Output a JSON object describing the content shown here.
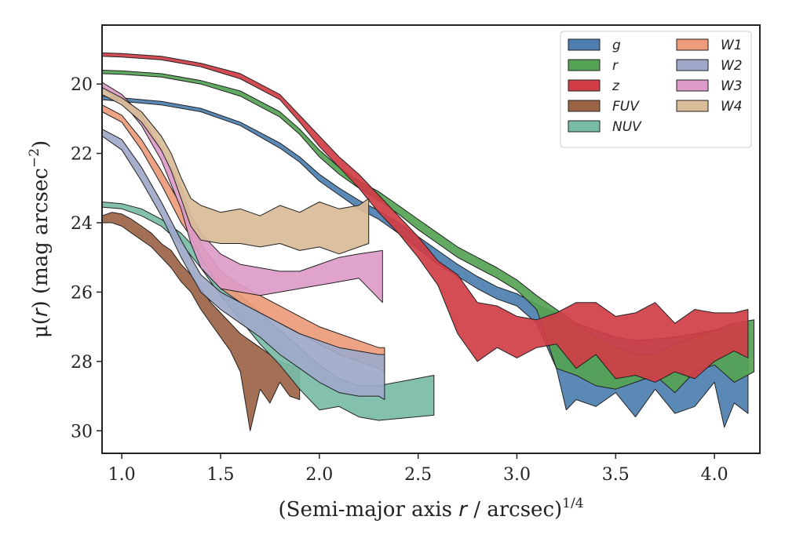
{
  "chart_data": {
    "type": "area",
    "xlabel": "(Semi-major axis r / arcsec)^{1/4}",
    "xlabel_parts": {
      "pre": "(Semi-major axis ",
      "var": "r",
      "mid": " / arcsec)",
      "sup": "1/4"
    },
    "ylabel": "μ(r) (mag arcsec^{-2})",
    "ylabel_parts": {
      "mu": "μ(",
      "var": "r",
      "post": ") (mag arcsec",
      "sup": "−2",
      "close": ")"
    },
    "xlim": [
      0.9,
      4.23
    ],
    "ylim": [
      30.65,
      18.3
    ],
    "y_inverted": true,
    "xticks": [
      1.0,
      1.5,
      2.0,
      2.5,
      3.0,
      3.5,
      4.0
    ],
    "xtick_labels": [
      "1.0",
      "1.5",
      "2.0",
      "2.5",
      "3.0",
      "3.5",
      "4.0"
    ],
    "yticks": [
      20,
      22,
      24,
      26,
      28,
      30
    ],
    "ytick_labels": [
      "20",
      "22",
      "24",
      "26",
      "28",
      "30"
    ],
    "grid": false,
    "legend_position": "top-right",
    "legend_columns": 2,
    "series": [
      {
        "name": "g",
        "color": "#4c7fb0",
        "x": [
          0.9,
          1.0,
          1.2,
          1.4,
          1.6,
          1.8,
          1.9,
          2.0,
          2.1,
          2.2,
          2.3,
          2.4,
          2.5,
          2.6,
          2.7,
          2.8,
          2.9,
          3.0,
          3.1,
          3.2,
          3.25,
          3.3,
          3.4,
          3.5,
          3.6,
          3.7,
          3.8,
          3.9,
          4.0,
          4.05,
          4.1,
          4.17
        ],
        "y_top": [
          20.35,
          20.4,
          20.5,
          20.7,
          21.1,
          21.7,
          22.1,
          22.6,
          23.0,
          23.35,
          23.65,
          24.0,
          24.4,
          24.8,
          25.2,
          25.55,
          25.85,
          26.05,
          26.35,
          26.6,
          26.8,
          26.9,
          27.1,
          27.3,
          27.4,
          27.35,
          27.3,
          27.2,
          27.1,
          27.0,
          27.0,
          27.2
        ],
        "y_bottom": [
          20.45,
          20.5,
          20.6,
          20.8,
          21.2,
          21.85,
          22.25,
          22.8,
          23.2,
          23.6,
          23.9,
          24.3,
          24.75,
          25.2,
          25.55,
          25.9,
          26.2,
          26.4,
          26.9,
          28.2,
          29.4,
          29.1,
          29.3,
          28.9,
          29.6,
          28.8,
          29.5,
          29.3,
          28.6,
          29.9,
          29.2,
          29.5
        ]
      },
      {
        "name": "r",
        "color": "#55a355",
        "x": [
          0.9,
          1.0,
          1.2,
          1.4,
          1.6,
          1.8,
          1.9,
          2.0,
          2.1,
          2.2,
          2.3,
          2.4,
          2.5,
          2.6,
          2.7,
          2.8,
          2.9,
          3.0,
          3.1,
          3.2,
          3.3,
          3.4,
          3.5,
          3.6,
          3.7,
          3.8,
          3.9,
          4.0,
          4.1,
          4.2
        ],
        "y_top": [
          19.6,
          19.62,
          19.7,
          19.9,
          20.2,
          20.8,
          21.3,
          21.9,
          22.4,
          22.8,
          23.1,
          23.5,
          23.9,
          24.3,
          24.7,
          25.0,
          25.3,
          25.65,
          26.1,
          26.5,
          26.9,
          27.3,
          27.6,
          27.8,
          27.8,
          27.5,
          27.3,
          27.1,
          26.9,
          26.8
        ],
        "y_bottom": [
          19.7,
          19.72,
          19.8,
          20.0,
          20.35,
          20.95,
          21.45,
          22.1,
          22.6,
          23.0,
          23.35,
          23.75,
          24.2,
          24.6,
          25.0,
          25.3,
          25.6,
          25.95,
          26.5,
          28.2,
          28.4,
          28.7,
          28.8,
          28.6,
          28.4,
          28.9,
          28.3,
          28.1,
          28.6,
          28.3
        ]
      },
      {
        "name": "z",
        "color": "#d03d45",
        "x": [
          0.9,
          1.0,
          1.2,
          1.4,
          1.6,
          1.8,
          1.9,
          2.0,
          2.1,
          2.2,
          2.3,
          2.4,
          2.5,
          2.6,
          2.7,
          2.8,
          2.9,
          3.0,
          3.1,
          3.2,
          3.3,
          3.4,
          3.5,
          3.6,
          3.7,
          3.8,
          3.9,
          4.0,
          4.1,
          4.17
        ],
        "y_top": [
          19.1,
          19.12,
          19.2,
          19.4,
          19.7,
          20.3,
          20.9,
          21.5,
          22.1,
          22.6,
          23.2,
          23.8,
          24.4,
          25.1,
          25.5,
          26.3,
          26.4,
          26.7,
          26.8,
          26.6,
          26.3,
          26.3,
          26.7,
          26.6,
          26.3,
          26.9,
          26.5,
          26.6,
          26.6,
          26.5
        ],
        "y_bottom": [
          19.2,
          19.22,
          19.3,
          19.5,
          19.85,
          20.45,
          21.1,
          21.8,
          22.4,
          23.0,
          23.7,
          24.3,
          25.0,
          25.8,
          27.2,
          28.0,
          27.6,
          27.9,
          27.6,
          27.5,
          28.2,
          27.8,
          28.5,
          28.4,
          28.6,
          28.3,
          28.5,
          28.0,
          27.7,
          27.9
        ]
      },
      {
        "name": "FUV",
        "color": "#9c6446",
        "x": [
          0.9,
          0.95,
          1.0,
          1.05,
          1.1,
          1.15,
          1.2,
          1.25,
          1.3,
          1.35,
          1.4,
          1.45,
          1.5,
          1.55,
          1.6,
          1.65,
          1.7,
          1.75,
          1.8,
          1.85,
          1.9
        ],
        "y_top": [
          23.8,
          23.7,
          23.75,
          23.9,
          24.1,
          24.3,
          24.6,
          24.8,
          25.2,
          25.5,
          25.9,
          26.3,
          26.6,
          26.9,
          27.2,
          27.4,
          27.6,
          27.8,
          28.0,
          28.1,
          28.2
        ],
        "y_bottom": [
          24.0,
          24.0,
          24.1,
          24.3,
          24.5,
          24.7,
          25.0,
          25.3,
          25.7,
          26.0,
          26.5,
          26.9,
          27.3,
          27.7,
          28.3,
          30.0,
          28.8,
          29.2,
          28.6,
          29.0,
          29.1
        ]
      },
      {
        "name": "NUV",
        "color": "#78bca7",
        "x": [
          0.9,
          1.0,
          1.1,
          1.2,
          1.3,
          1.4,
          1.5,
          1.6,
          1.7,
          1.8,
          1.9,
          2.0,
          2.1,
          2.2,
          2.3,
          2.58
        ],
        "y_top": [
          23.4,
          23.45,
          23.6,
          23.9,
          24.3,
          24.9,
          25.5,
          26.1,
          26.6,
          27.1,
          27.6,
          28.1,
          28.5,
          28.7,
          28.7,
          28.4
        ],
        "y_bottom": [
          23.55,
          23.6,
          23.8,
          24.1,
          24.6,
          25.3,
          26.1,
          26.8,
          27.5,
          28.1,
          28.8,
          29.4,
          29.3,
          29.6,
          29.7,
          29.55
        ]
      },
      {
        "name": "W1",
        "color": "#ed9b7a",
        "x": [
          0.9,
          1.0,
          1.1,
          1.2,
          1.3,
          1.35,
          1.4,
          1.5,
          1.6,
          1.7,
          1.8,
          1.9,
          2.0,
          2.1,
          2.2,
          2.3,
          2.33
        ],
        "y_top": [
          20.6,
          20.9,
          21.6,
          22.5,
          23.5,
          24.0,
          24.6,
          25.4,
          25.8,
          26.1,
          26.4,
          26.7,
          27.0,
          27.2,
          27.4,
          27.6,
          27.6
        ],
        "y_bottom": [
          20.8,
          21.1,
          21.9,
          22.9,
          24.0,
          24.4,
          25.0,
          25.9,
          26.3,
          26.6,
          26.9,
          27.2,
          27.5,
          27.8,
          28.0,
          28.2,
          28.3
        ]
      },
      {
        "name": "W2",
        "color": "#9ea9c9",
        "x": [
          0.9,
          1.0,
          1.1,
          1.2,
          1.3,
          1.35,
          1.4,
          1.5,
          1.6,
          1.7,
          1.8,
          1.9,
          2.0,
          2.1,
          2.2,
          2.3,
          2.33
        ],
        "y_top": [
          21.3,
          21.6,
          22.4,
          23.4,
          24.5,
          25.0,
          25.5,
          26.0,
          26.3,
          26.6,
          26.9,
          27.2,
          27.4,
          27.6,
          27.7,
          27.8,
          27.8
        ],
        "y_bottom": [
          21.5,
          21.9,
          22.8,
          23.8,
          25.0,
          25.5,
          26.0,
          26.5,
          26.9,
          27.3,
          27.8,
          28.2,
          28.6,
          28.9,
          29.0,
          29.0,
          29.1
        ]
      },
      {
        "name": "W3",
        "color": "#dd9bc8",
        "x": [
          0.9,
          1.0,
          1.1,
          1.2,
          1.3,
          1.35,
          1.4,
          1.5,
          1.6,
          1.7,
          1.8,
          1.9,
          2.0,
          2.1,
          2.2,
          2.32
        ],
        "y_top": [
          19.95,
          20.3,
          20.9,
          21.9,
          23.0,
          23.8,
          24.3,
          24.9,
          25.2,
          25.3,
          25.4,
          25.4,
          25.2,
          25.0,
          24.9,
          24.8
        ],
        "y_bottom": [
          20.1,
          20.5,
          21.2,
          22.2,
          23.6,
          24.6,
          25.3,
          25.9,
          26.0,
          26.1,
          26.0,
          25.9,
          25.8,
          25.7,
          25.6,
          26.3
        ]
      },
      {
        "name": "W4",
        "color": "#d9bc98",
        "x": [
          0.9,
          1.0,
          1.1,
          1.2,
          1.25,
          1.3,
          1.35,
          1.4,
          1.5,
          1.6,
          1.7,
          1.8,
          1.9,
          2.0,
          2.1,
          2.2,
          2.25
        ],
        "y_top": [
          20.1,
          20.4,
          20.8,
          21.5,
          22.0,
          22.7,
          23.3,
          23.5,
          23.7,
          23.6,
          23.8,
          23.5,
          23.7,
          23.4,
          23.6,
          23.5,
          23.3
        ],
        "y_bottom": [
          20.3,
          20.6,
          21.1,
          21.9,
          22.5,
          23.3,
          24.1,
          24.5,
          24.6,
          24.6,
          24.7,
          24.6,
          24.8,
          24.7,
          24.9,
          24.7,
          24.6
        ]
      }
    ]
  }
}
